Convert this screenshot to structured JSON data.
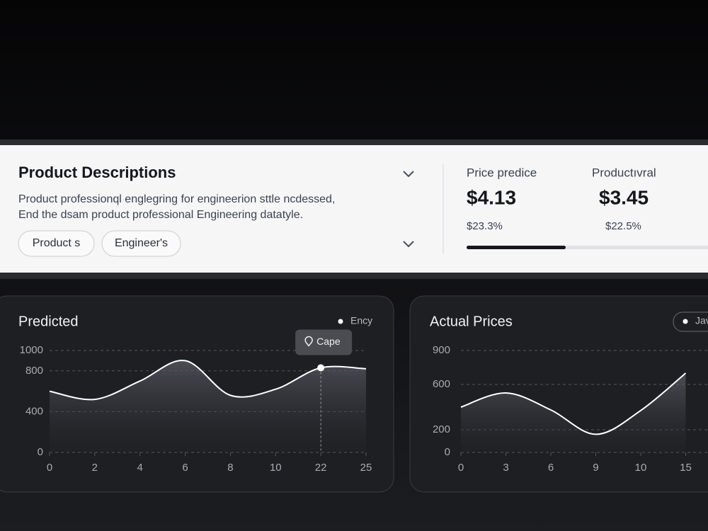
{
  "card": {
    "title": "Product Descriptions",
    "description": [
      "Product professionql englegring for engineerion sttle ncdessed,",
      "End the dsam product professional Engineering datatyle."
    ],
    "tags": [
      "Product s",
      "Engineer's"
    ],
    "metrics": [
      {
        "label": "Price predice",
        "value": "$4.13",
        "change": "$23.3%"
      },
      {
        "label": "Productıvral",
        "value": "$3.45",
        "change": "$22.5%"
      }
    ]
  },
  "chart_data": [
    {
      "type": "line",
      "title": "Predicted",
      "categories": [
        "0",
        "2",
        "4",
        "6",
        "8",
        "10",
        "22",
        "25"
      ],
      "series": [
        {
          "name": "Ency",
          "color": "#ffffff",
          "values": [
            600,
            520,
            700,
            900,
            560,
            620,
            830,
            820
          ]
        }
      ],
      "ylim": [
        0,
        1000
      ],
      "yticks": [
        0,
        400,
        800,
        1000
      ],
      "grid": true,
      "annotations": [
        {
          "text": "Cape",
          "x": "22"
        }
      ]
    },
    {
      "type": "line",
      "title": "Actual Prices",
      "categories": [
        "0",
        "3",
        "6",
        "9",
        "10",
        "15"
      ],
      "series": [
        {
          "name": "Jav",
          "color": "#ffffff",
          "values": [
            400,
            525,
            375,
            160,
            370,
            700
          ]
        }
      ],
      "ylim": [
        0,
        900
      ],
      "yticks": [
        0,
        200,
        600,
        900
      ],
      "grid": true
    }
  ]
}
